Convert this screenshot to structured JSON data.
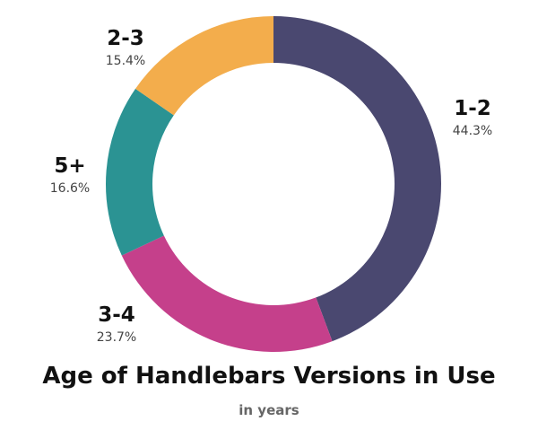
{
  "chart_data": {
    "type": "pie",
    "title": "Age of Handlebars Versions in Use",
    "subtitle": "in years",
    "categories": [
      "1-2",
      "3-4",
      "5+",
      "2-3"
    ],
    "values": [
      44.3,
      23.7,
      16.6,
      15.4
    ],
    "value_labels": [
      "44.3%",
      "23.7%",
      "16.6%",
      "15.4%"
    ],
    "colors": [
      "#4a4870",
      "#c5408b",
      "#2b9393",
      "#f3ad4c"
    ],
    "donut": true,
    "start_angle_deg": 0,
    "direction": "clockwise",
    "legend": "none"
  }
}
